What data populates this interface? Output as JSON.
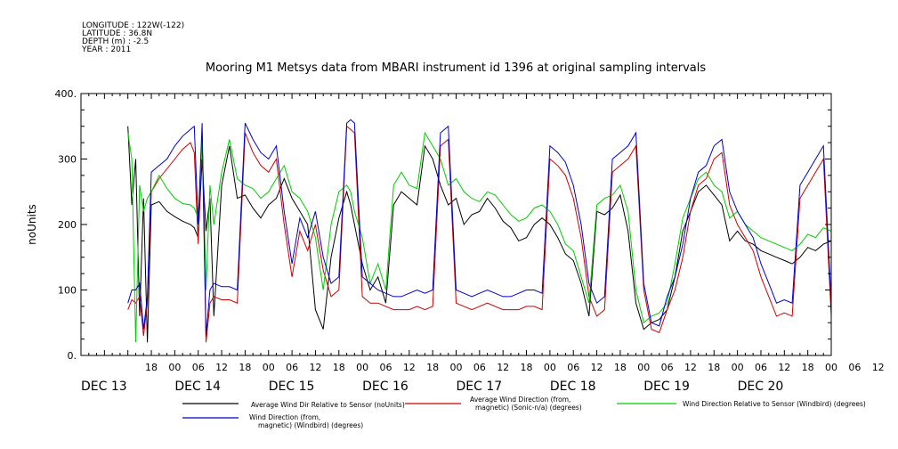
{
  "header": {
    "lines": [
      "LONGITUDE : 122W(-122)",
      "LATITUDE : 36.8N",
      "DEPTH (m) : -2.5",
      "YEAR : 2011"
    ]
  },
  "chart_data": {
    "type": "line",
    "title": "Mooring M1 Metsys data from MBARI instrument id 1396 at original sampling intervals",
    "ylabel": "noUnits",
    "xlabel": "",
    "ylim": [
      0,
      400
    ],
    "yticks": [
      0,
      100,
      200,
      300,
      400
    ],
    "ytick_labels": [
      "0.",
      "100",
      "200",
      "300",
      "400."
    ],
    "xlim": [
      0,
      192
    ],
    "hour_ticks": [
      "18",
      "00",
      "06",
      "12",
      "18",
      "00",
      "06",
      "12",
      "18",
      "00",
      "06",
      "12",
      "18",
      "00",
      "06",
      "12",
      "18",
      "00",
      "06",
      "12",
      "18",
      "00",
      "06",
      "12",
      "18",
      "00",
      "06",
      "12",
      "18",
      "00",
      "06",
      "12"
    ],
    "date_labels": [
      "DEC 13",
      "DEC 14",
      "DEC 15",
      "DEC 16",
      "DEC 17",
      "DEC 18",
      "DEC 19",
      "DEC 20"
    ],
    "x_unit": "hours since DEC 13 00:00",
    "grid": false,
    "legend_position": "bottom",
    "series": [
      {
        "name": "Average Wind Dir Relative to Sensor (noUnits)",
        "color": "#000000",
        "x": [
          12,
          13,
          14,
          15,
          16,
          17,
          18,
          20,
          22,
          24,
          26,
          28,
          29,
          30,
          31,
          32,
          33,
          34,
          36,
          38,
          40,
          42,
          44,
          46,
          48,
          50,
          52,
          54,
          56,
          58,
          60,
          62,
          64,
          66,
          68,
          69,
          70,
          72,
          74,
          76,
          78,
          80,
          82,
          84,
          86,
          88,
          90,
          92,
          94,
          96,
          98,
          100,
          102,
          104,
          106,
          108,
          110,
          112,
          114,
          116,
          118,
          120,
          122,
          124,
          126,
          128,
          130,
          132,
          134,
          136,
          138,
          140,
          142,
          144,
          146,
          148,
          150,
          152,
          154,
          156,
          158,
          160,
          162,
          164,
          166,
          168,
          170,
          172,
          174,
          176,
          178,
          180,
          182,
          184,
          186,
          188,
          190,
          192
        ],
        "y": [
          350,
          230,
          300,
          60,
          240,
          20,
          230,
          235,
          220,
          212,
          205,
          200,
          195,
          180,
          300,
          190,
          240,
          60,
          260,
          320,
          240,
          245,
          225,
          210,
          230,
          240,
          270,
          240,
          220,
          200,
          70,
          40,
          150,
          210,
          250,
          230,
          200,
          140,
          100,
          120,
          80,
          230,
          250,
          240,
          230,
          320,
          300,
          260,
          230,
          240,
          200,
          215,
          220,
          240,
          225,
          205,
          195,
          175,
          180,
          200,
          210,
          200,
          180,
          155,
          145,
          110,
          60,
          220,
          215,
          225,
          245,
          190,
          80,
          40,
          50,
          55,
          70,
          120,
          190,
          220,
          250,
          260,
          245,
          230,
          175,
          190,
          175,
          170,
          160,
          155,
          150,
          145,
          140,
          150,
          165,
          160,
          170,
          175
        ]
      },
      {
        "name": "Average Wind Direction (from, magnetic) (Sonic-n/a) (degrees)",
        "color": "#cc0000",
        "x": [
          12,
          13,
          14,
          15,
          16,
          17,
          18,
          20,
          22,
          24,
          26,
          28,
          29,
          30,
          31,
          32,
          33,
          34,
          36,
          38,
          40,
          42,
          44,
          46,
          48,
          50,
          52,
          54,
          56,
          58,
          60,
          62,
          64,
          66,
          68,
          69,
          70,
          72,
          74,
          76,
          78,
          80,
          82,
          84,
          86,
          88,
          90,
          92,
          94,
          96,
          98,
          100,
          102,
          104,
          106,
          108,
          110,
          112,
          114,
          116,
          118,
          120,
          122,
          124,
          126,
          128,
          130,
          132,
          134,
          136,
          138,
          140,
          142,
          144,
          146,
          148,
          150,
          152,
          154,
          156,
          158,
          160,
          162,
          164,
          166,
          168,
          170,
          172,
          174,
          176,
          178,
          180,
          182,
          184,
          186,
          188,
          190,
          192
        ],
        "y": [
          70,
          85,
          80,
          90,
          30,
          80,
          250,
          270,
          285,
          300,
          315,
          325,
          310,
          170,
          340,
          20,
          80,
          90,
          85,
          85,
          80,
          340,
          310,
          290,
          280,
          300,
          200,
          120,
          190,
          160,
          200,
          130,
          90,
          100,
          350,
          345,
          340,
          90,
          80,
          80,
          75,
          70,
          70,
          70,
          75,
          70,
          75,
          320,
          330,
          80,
          75,
          70,
          75,
          80,
          75,
          70,
          70,
          70,
          75,
          75,
          70,
          300,
          290,
          275,
          240,
          180,
          90,
          60,
          70,
          280,
          290,
          300,
          320,
          100,
          40,
          35,
          70,
          100,
          150,
          220,
          260,
          270,
          300,
          310,
          230,
          200,
          180,
          160,
          120,
          90,
          60,
          65,
          60,
          240,
          260,
          280,
          300,
          60
        ]
      },
      {
        "name": "Wind Direction Relative to Sensor (Windbird) (degrees)",
        "color": "#00cc00",
        "x": [
          12,
          13,
          14,
          15,
          16,
          17,
          18,
          20,
          22,
          24,
          26,
          28,
          29,
          30,
          31,
          32,
          33,
          34,
          36,
          38,
          40,
          42,
          44,
          46,
          48,
          50,
          52,
          54,
          56,
          58,
          60,
          62,
          64,
          66,
          68,
          69,
          70,
          72,
          74,
          76,
          78,
          80,
          82,
          84,
          86,
          88,
          90,
          92,
          94,
          96,
          98,
          100,
          102,
          104,
          106,
          108,
          110,
          112,
          114,
          116,
          118,
          120,
          122,
          124,
          126,
          128,
          130,
          132,
          134,
          136,
          138,
          140,
          142,
          144,
          146,
          148,
          150,
          152,
          154,
          156,
          158,
          160,
          162,
          164,
          166,
          168,
          170,
          172,
          174,
          176,
          178,
          180,
          182,
          184,
          186,
          188,
          190,
          192
        ],
        "y": [
          340,
          300,
          20,
          260,
          220,
          240,
          250,
          275,
          255,
          240,
          232,
          230,
          225,
          210,
          330,
          100,
          260,
          200,
          280,
          330,
          270,
          260,
          255,
          240,
          250,
          270,
          290,
          250,
          240,
          220,
          180,
          100,
          200,
          250,
          260,
          250,
          220,
          180,
          110,
          140,
          100,
          260,
          280,
          260,
          255,
          340,
          320,
          300,
          260,
          270,
          250,
          240,
          235,
          250,
          245,
          230,
          215,
          205,
          210,
          225,
          230,
          220,
          200,
          170,
          160,
          120,
          80,
          230,
          240,
          245,
          260,
          220,
          100,
          50,
          60,
          65,
          80,
          140,
          210,
          240,
          270,
          280,
          260,
          250,
          210,
          220,
          200,
          190,
          180,
          175,
          170,
          165,
          160,
          170,
          185,
          180,
          195,
          190
        ]
      },
      {
        "name": "Wind Direction (from, magnetic) (Windbird) (degrees)",
        "color": "#0000cc",
        "x": [
          12,
          13,
          14,
          15,
          16,
          17,
          18,
          20,
          22,
          24,
          26,
          28,
          29,
          30,
          31,
          32,
          33,
          34,
          36,
          38,
          40,
          42,
          44,
          46,
          48,
          50,
          52,
          54,
          56,
          58,
          60,
          62,
          64,
          66,
          68,
          69,
          70,
          72,
          74,
          76,
          78,
          80,
          82,
          84,
          86,
          88,
          90,
          92,
          94,
          96,
          98,
          100,
          102,
          104,
          106,
          108,
          110,
          112,
          114,
          116,
          118,
          120,
          122,
          124,
          126,
          128,
          130,
          132,
          134,
          136,
          138,
          140,
          142,
          144,
          146,
          148,
          150,
          152,
          154,
          156,
          158,
          160,
          162,
          164,
          166,
          168,
          170,
          172,
          174,
          176,
          178,
          180,
          182,
          184,
          186,
          188,
          190,
          192
        ],
        "y": [
          80,
          100,
          100,
          110,
          40,
          90,
          280,
          290,
          300,
          320,
          335,
          345,
          350,
          200,
          355,
          30,
          100,
          110,
          105,
          105,
          100,
          355,
          330,
          310,
          300,
          320,
          220,
          140,
          210,
          180,
          220,
          150,
          110,
          120,
          355,
          360,
          355,
          120,
          110,
          100,
          95,
          90,
          90,
          95,
          100,
          95,
          100,
          340,
          350,
          100,
          95,
          90,
          95,
          100,
          95,
          90,
          90,
          95,
          100,
          100,
          95,
          320,
          310,
          295,
          260,
          200,
          110,
          80,
          90,
          300,
          310,
          320,
          340,
          110,
          50,
          45,
          90,
          120,
          170,
          240,
          280,
          290,
          320,
          330,
          250,
          220,
          200,
          180,
          140,
          110,
          80,
          85,
          80,
          260,
          280,
          300,
          320,
          80
        ]
      }
    ]
  }
}
